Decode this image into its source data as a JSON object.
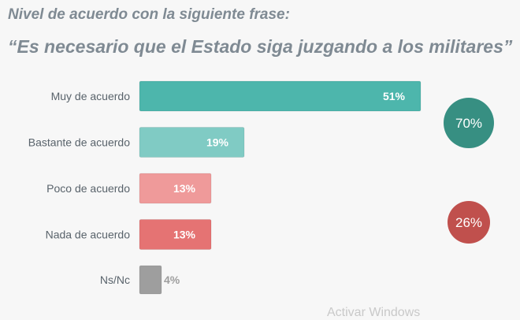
{
  "title": "Nivel de acuerdo con la siguiente frase:",
  "subtitle": "“Es necesario que el Estado siga juzgando a los militares”",
  "watermark": "Activar Windows",
  "colors": {
    "muy": "#4db6ac",
    "bastante": "#80cbc4",
    "poco": "#ef9a9a",
    "nada": "#e57373",
    "nsnc": "#9e9e9e",
    "acuerdo_total": "#378f82",
    "desacuerdo_total": "#c0504d"
  },
  "chart_data": {
    "type": "bar",
    "orientation": "horizontal",
    "title": "Nivel de acuerdo con la siguiente frase:",
    "subtitle": "“Es necesario que el Estado siga juzgando a los militares”",
    "unit": "%",
    "xlim": [
      0,
      60
    ],
    "categories": [
      "Muy de acuerdo",
      "Bastante de acuerdo",
      "Poco de acuerdo",
      "Nada de acuerdo",
      "Ns/Nc"
    ],
    "values": [
      51,
      19,
      13,
      13,
      4
    ],
    "value_labels": [
      "51%",
      "19%",
      "13%",
      "13%",
      "4%"
    ],
    "bar_colors": [
      "#4db6ac",
      "#80cbc4",
      "#ef9a9a",
      "#e57373",
      "#9e9e9e"
    ],
    "totals": [
      {
        "label": "70%",
        "value": 70,
        "group": "acuerdo",
        "color": "#378f82"
      },
      {
        "label": "26%",
        "value": 26,
        "group": "desacuerdo",
        "color": "#c0504d"
      }
    ]
  }
}
